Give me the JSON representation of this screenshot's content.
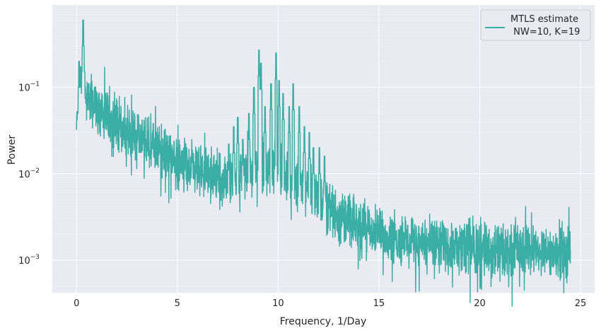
{
  "chart_data": {
    "type": "line",
    "title": "",
    "xlabel": "Frequency, 1/Day",
    "ylabel": "Power",
    "xscale": "linear",
    "yscale": "log",
    "xlim": [
      -1.2,
      25.7
    ],
    "ylim": [
      0.00042,
      0.9
    ],
    "xticks": [
      0,
      5,
      10,
      15,
      20,
      25
    ],
    "yticks": [
      {
        "value": 0.001,
        "base": "10",
        "exp": "−3"
      },
      {
        "value": 0.01,
        "base": "10",
        "exp": "−2"
      },
      {
        "value": 0.1,
        "base": "10",
        "exp": "−1"
      }
    ],
    "grid": true,
    "legend_position": "top-right",
    "colors": {
      "series": "#3aada4",
      "plot_bg": "#eaeaf2",
      "grid": "#ffffff",
      "text": "#262626"
    },
    "series": [
      {
        "name": "MTLS estimate\n NW=10, K=19",
        "legend_lines": [
          "MTLS estimate",
          " NW=10, K=19"
        ],
        "x_range": [
          0,
          24.5
        ],
        "envelope": [
          [
            0.0,
            0.031
          ],
          [
            0.1,
            0.06
          ],
          [
            0.2,
            0.15
          ],
          [
            0.3,
            0.09
          ],
          [
            0.5,
            0.07
          ],
          [
            1.0,
            0.055
          ],
          [
            1.5,
            0.048
          ],
          [
            2.0,
            0.04
          ],
          [
            2.5,
            0.03
          ],
          [
            3.0,
            0.026
          ],
          [
            3.5,
            0.022
          ],
          [
            4.0,
            0.02
          ],
          [
            4.5,
            0.017
          ],
          [
            5.0,
            0.014
          ],
          [
            5.5,
            0.012
          ],
          [
            6.0,
            0.011
          ],
          [
            6.5,
            0.0095
          ],
          [
            7.0,
            0.009
          ],
          [
            7.5,
            0.0085
          ],
          [
            8.0,
            0.009
          ],
          [
            8.5,
            0.011
          ],
          [
            9.0,
            0.013
          ],
          [
            9.5,
            0.012
          ],
          [
            10.0,
            0.011
          ],
          [
            10.5,
            0.009
          ],
          [
            11.0,
            0.0078
          ],
          [
            11.5,
            0.0065
          ],
          [
            12.0,
            0.0055
          ],
          [
            12.5,
            0.0042
          ],
          [
            13.0,
            0.0033
          ],
          [
            13.5,
            0.0029
          ],
          [
            14.0,
            0.0025
          ],
          [
            15.0,
            0.002
          ],
          [
            16.0,
            0.0018
          ],
          [
            17.0,
            0.0016
          ],
          [
            18.0,
            0.0015
          ],
          [
            19.0,
            0.0014
          ],
          [
            20.0,
            0.0014
          ],
          [
            21.0,
            0.0013
          ],
          [
            22.0,
            0.0013
          ],
          [
            23.0,
            0.0013
          ],
          [
            24.0,
            0.0013
          ],
          [
            24.5,
            0.0013
          ]
        ],
        "peaks": [
          [
            0.05,
            0.05
          ],
          [
            0.1,
            0.1
          ],
          [
            0.13,
            0.2
          ],
          [
            0.2,
            0.17
          ],
          [
            0.27,
            0.15
          ],
          [
            0.33,
            0.6
          ],
          [
            0.4,
            0.15
          ],
          [
            0.6,
            0.11
          ],
          [
            0.9,
            0.1
          ],
          [
            7.55,
            0.022
          ],
          [
            7.8,
            0.035
          ],
          [
            8.0,
            0.045
          ],
          [
            8.25,
            0.025
          ],
          [
            8.55,
            0.05
          ],
          [
            8.8,
            0.1
          ],
          [
            9.05,
            0.27
          ],
          [
            9.15,
            0.19
          ],
          [
            9.35,
            0.06
          ],
          [
            9.65,
            0.11
          ],
          [
            9.9,
            0.25
          ],
          [
            10.05,
            0.12
          ],
          [
            10.25,
            0.085
          ],
          [
            10.55,
            0.06
          ],
          [
            10.75,
            0.11
          ],
          [
            11.05,
            0.06
          ],
          [
            11.3,
            0.035
          ],
          [
            11.55,
            0.03
          ],
          [
            11.75,
            0.02
          ],
          [
            12.05,
            0.02
          ],
          [
            12.3,
            0.016
          ]
        ]
      }
    ]
  }
}
